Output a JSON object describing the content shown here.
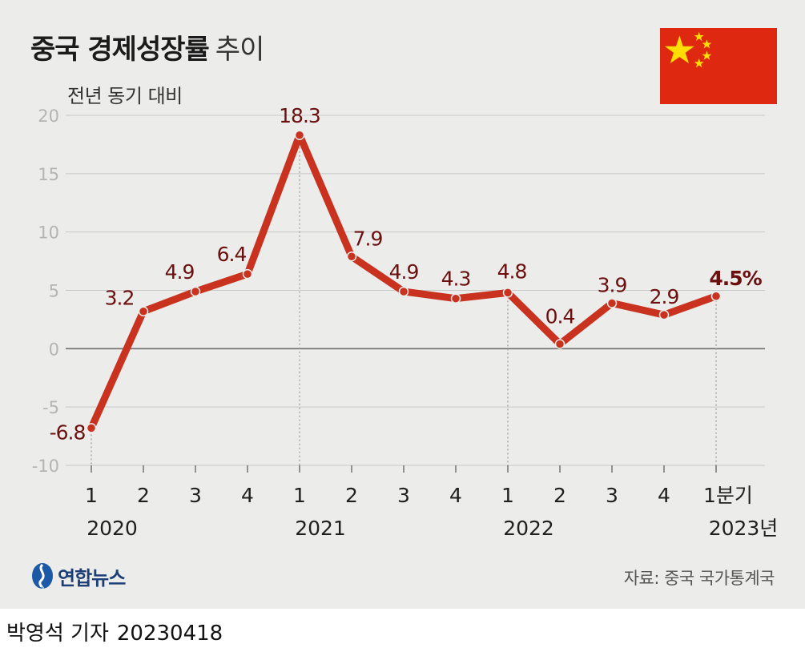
{
  "title": {
    "bold": "중국 경제성장률",
    "light": "추이"
  },
  "unit_label": "전년 동기 대비",
  "flag": {
    "icon": "china-flag-icon",
    "red": "#de2910",
    "yellow": "#ffde00"
  },
  "colors": {
    "line": "#c8321f",
    "point": "#c8321f",
    "label": "#6b0f0f",
    "grid": "#c8c8c8",
    "zero_line": "#6e6e6e",
    "background": "#ececeb"
  },
  "chart_data": {
    "type": "line",
    "title": "중국 경제성장률 추이",
    "ylabel": "전년 동기 대비",
    "ylim": [
      -10,
      20
    ],
    "yticks": [
      20,
      15,
      10,
      5,
      0,
      -5,
      -10
    ],
    "categories": [
      "1",
      "2",
      "3",
      "4",
      "1",
      "2",
      "3",
      "4",
      "1",
      "2",
      "3",
      "4",
      "1분기"
    ],
    "years": [
      {
        "label": "2020",
        "index": 0
      },
      {
        "label": "2021",
        "index": 4
      },
      {
        "label": "2022",
        "index": 8
      },
      {
        "label": "2023년",
        "index": 12
      }
    ],
    "year_separator_indices": [
      4,
      8,
      12
    ],
    "series": [
      {
        "name": "중국 경제성장률",
        "values": [
          -6.8,
          3.2,
          4.9,
          6.4,
          18.3,
          7.9,
          4.9,
          4.3,
          4.8,
          0.4,
          3.9,
          2.9,
          4.5
        ],
        "labels": [
          "-6.8",
          "3.2",
          "4.9",
          "6.4",
          "18.3",
          "7.9",
          "4.9",
          "4.3",
          "4.8",
          "0.4",
          "3.9",
          "2.9",
          "4.5%"
        ]
      }
    ]
  },
  "logo": {
    "text": "연합뉴스",
    "icon": "yonhap-logo-icon"
  },
  "source": "자료: 중국 국가통계국",
  "credit": {
    "name": "박영석 기자",
    "date": "20230418"
  }
}
